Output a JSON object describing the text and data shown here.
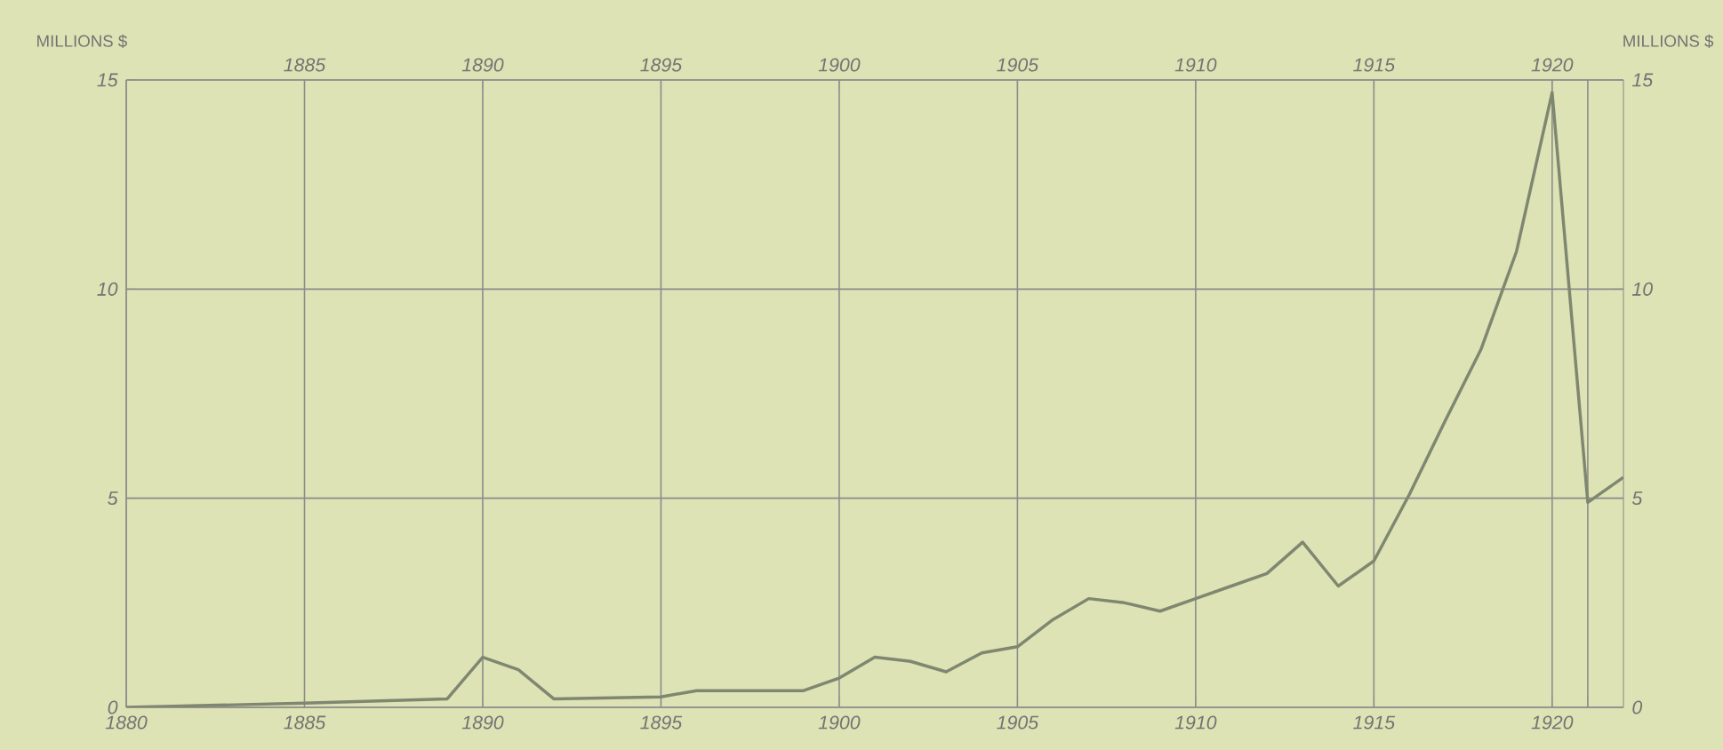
{
  "chart_data": {
    "type": "line",
    "ylabel": "MILLIONS $",
    "y2label": "MILLIONS $",
    "x": [
      1880,
      1885,
      1889,
      1890,
      1891,
      1892,
      1895,
      1896,
      1899,
      1900,
      1901,
      1902,
      1903,
      1904,
      1905,
      1906,
      1907,
      1908,
      1909,
      1910,
      1911,
      1912,
      1913,
      1914,
      1915,
      1916,
      1917,
      1918,
      1919,
      1920,
      1921,
      1922
    ],
    "series": [
      {
        "color": "#7f8770",
        "values": [
          0,
          0.1,
          0.2,
          1.2,
          0.9,
          0.2,
          0.25,
          0.4,
          0.4,
          0.7,
          1.2,
          1.1,
          0.85,
          1.3,
          1.45,
          2.1,
          2.6,
          2.5,
          2.3,
          2.6,
          2.9,
          3.2,
          3.95,
          2.9,
          3.5,
          5.1,
          6.85,
          8.55,
          10.9,
          14.7,
          4.9,
          5.5
        ]
      }
    ],
    "xlim": [
      1880,
      1922
    ],
    "xticks": [
      1880,
      1885,
      1890,
      1895,
      1900,
      1905,
      1910,
      1915,
      1920,
      {
        "value": 1921,
        "label": null
      }
    ],
    "x2lim": [
      1880,
      1922
    ],
    "x2ticks": [
      1885,
      1890,
      1895,
      1900,
      1905,
      1910,
      1915,
      1920
    ],
    "ylim": [
      0,
      15
    ],
    "yticks": [
      0,
      5,
      10,
      15
    ],
    "y2lim": [
      0,
      15
    ],
    "y2ticks": [
      0,
      5,
      10,
      15
    ],
    "grid": true,
    "marker": "none",
    "line_style": "solid"
  }
}
